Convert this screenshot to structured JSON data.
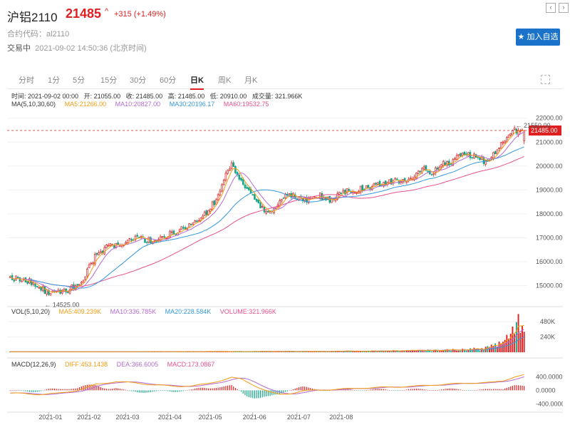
{
  "header": {
    "title": "沪铝2110",
    "price": "21485",
    "arrow": "^",
    "change": "+315 (+1.49%)",
    "code_label": "合约代码：",
    "code": "al2110",
    "trade_status": "交易中",
    "trade_time": "2021-09-02 14:50:36 (北京时间)",
    "add_button": "加入自选",
    "colors": {
      "up": "#e02020",
      "down": "#17a589",
      "accent": "#1a73c8"
    }
  },
  "tabs": [
    "分时",
    "1分",
    "5分",
    "15分",
    "30分",
    "60分",
    "日K",
    "周K",
    "月K"
  ],
  "active_tab": "日K",
  "info": {
    "time": "时间: 2021-09-02 00:00",
    "open": "开: 21055.00",
    "close": "收: 21485.00",
    "high": "高: 21485.00",
    "low": "低: 20910.00",
    "volume": "成交量: 321.966K",
    "ma_label": "MA(5,10,30,60)",
    "ma5": "MA5:21266.00",
    "ma10": "MA10:20827.00",
    "ma30": "MA30:20196.17",
    "ma60": "MA60:19532.75",
    "vol_label": "VOL(5,10,20)",
    "vma5": "MA5:409.239K",
    "vma10": "MA10:336.785K",
    "vma20": "MA20:228.584K",
    "volume2": "VOLUME:321.966K",
    "macd_label": "MACD(12,26,9)",
    "diff": "DIFF:453.1438",
    "dea": "DEA:366.6005",
    "macd": "MACD:173.0867"
  },
  "chart_data": {
    "type": "candlestick",
    "x_ticks": [
      "2021-01",
      "2021-02",
      "2021-03",
      "2021-04",
      "2021-05",
      "2021-06",
      "2021-07",
      "2021-08"
    ],
    "price_ticks": [
      "22000.00",
      "21000.00",
      "20000.00",
      "19000.00",
      "18000.00",
      "17000.00",
      "16000.00",
      "15000.00"
    ],
    "price_ylim": [
      14300,
      22350
    ],
    "last_price_label": "21485.00",
    "max_label": "21550.00",
    "min_label": "14525.00",
    "vol_ticks": [
      "480K",
      "240K"
    ],
    "vol_ylim": [
      0,
      560
    ],
    "macd_ticks": [
      "400.0000",
      "0.0000",
      "-400.0000"
    ],
    "macd_ylim": [
      -520,
      620
    ],
    "price_anchors": [
      [
        0,
        15350
      ],
      [
        12,
        15150
      ],
      [
        20,
        14650
      ],
      [
        30,
        14800
      ],
      [
        38,
        15300
      ],
      [
        44,
        16200
      ],
      [
        50,
        16600
      ],
      [
        58,
        16750
      ],
      [
        65,
        16950
      ],
      [
        75,
        16900
      ],
      [
        80,
        17100
      ],
      [
        87,
        17250
      ],
      [
        94,
        17550
      ],
      [
        101,
        17950
      ],
      [
        107,
        18600
      ],
      [
        112,
        19600
      ],
      [
        115,
        20100
      ],
      [
        119,
        19450
      ],
      [
        124,
        18900
      ],
      [
        129,
        18400
      ],
      [
        134,
        18000
      ],
      [
        139,
        18400
      ],
      [
        144,
        18900
      ],
      [
        149,
        18650
      ],
      [
        154,
        18550
      ],
      [
        161,
        18750
      ],
      [
        166,
        18550
      ],
      [
        171,
        18900
      ],
      [
        177,
        18950
      ],
      [
        183,
        19050
      ],
      [
        189,
        19150
      ],
      [
        194,
        19250
      ],
      [
        200,
        19400
      ],
      [
        205,
        19400
      ],
      [
        210,
        19550
      ],
      [
        215,
        19850
      ],
      [
        219,
        19650
      ],
      [
        224,
        20050
      ],
      [
        230,
        20200
      ],
      [
        236,
        20550
      ],
      [
        242,
        20350
      ],
      [
        248,
        20150
      ],
      [
        254,
        20850
      ],
      [
        258,
        21200
      ],
      [
        261,
        21550
      ],
      [
        265,
        21400
      ],
      [
        267,
        21485
      ]
    ],
    "volume_anchors": [
      [
        0,
        8
      ],
      [
        60,
        9
      ],
      [
        110,
        11
      ],
      [
        150,
        13
      ],
      [
        180,
        18
      ],
      [
        205,
        24
      ],
      [
        225,
        33
      ],
      [
        235,
        42
      ],
      [
        245,
        55
      ],
      [
        250,
        85
      ],
      [
        254,
        140
      ],
      [
        257,
        190
      ],
      [
        260,
        300
      ],
      [
        262,
        420
      ],
      [
        264,
        510
      ],
      [
        265,
        360
      ],
      [
        267,
        322
      ]
    ],
    "macd_anchors": [
      [
        0,
        -80
      ],
      [
        15,
        -120
      ],
      [
        25,
        -90
      ],
      [
        35,
        0
      ],
      [
        45,
        180
      ],
      [
        55,
        260
      ],
      [
        65,
        220
      ],
      [
        75,
        160
      ],
      [
        85,
        120
      ],
      [
        95,
        130
      ],
      [
        103,
        200
      ],
      [
        110,
        300
      ],
      [
        115,
        380
      ],
      [
        120,
        330
      ],
      [
        125,
        200
      ],
      [
        130,
        60
      ],
      [
        135,
        -60
      ],
      [
        140,
        -120
      ],
      [
        146,
        -90
      ],
      [
        152,
        -20
      ],
      [
        160,
        10
      ],
      [
        170,
        30
      ],
      [
        180,
        60
      ],
      [
        190,
        80
      ],
      [
        200,
        100
      ],
      [
        210,
        120
      ],
      [
        220,
        160
      ],
      [
        230,
        190
      ],
      [
        240,
        220
      ],
      [
        250,
        230
      ],
      [
        256,
        280
      ],
      [
        262,
        400
      ],
      [
        267,
        453
      ]
    ]
  }
}
